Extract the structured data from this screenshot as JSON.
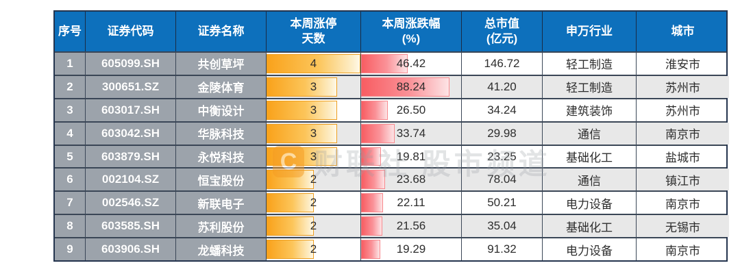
{
  "chart_data": {
    "type": "table",
    "title": "",
    "columns": [
      {
        "id": "index",
        "label": "序号"
      },
      {
        "id": "code",
        "label": "证券代码"
      },
      {
        "id": "name",
        "label": "证券名称"
      },
      {
        "id": "limit_days",
        "label": "本周涨停\n天数"
      },
      {
        "id": "change_pct",
        "label": "本周涨跌幅\n(%)"
      },
      {
        "id": "market_cap",
        "label": "总市值\n(亿元)"
      },
      {
        "id": "industry",
        "label": "申万行业"
      },
      {
        "id": "city",
        "label": "城市"
      }
    ],
    "rows": [
      {
        "index": "1",
        "code": "605099.SH",
        "name": "共创草坪",
        "limit_days": "4",
        "change_pct": "46.42",
        "market_cap": "146.72",
        "industry": "轻工制造",
        "city": "淮安市"
      },
      {
        "index": "2",
        "code": "300651.SZ",
        "name": "金陵体育",
        "limit_days": "3",
        "change_pct": "88.24",
        "market_cap": "41.20",
        "industry": "轻工制造",
        "city": "苏州市"
      },
      {
        "index": "3",
        "code": "603017.SH",
        "name": "中衡设计",
        "limit_days": "3",
        "change_pct": "26.50",
        "market_cap": "34.24",
        "industry": "建筑装饰",
        "city": "苏州市"
      },
      {
        "index": "4",
        "code": "603042.SH",
        "name": "华脉科技",
        "limit_days": "3",
        "change_pct": "33.74",
        "market_cap": "29.98",
        "industry": "通信",
        "city": "南京市"
      },
      {
        "index": "5",
        "code": "603879.SH",
        "name": "永悦科技",
        "limit_days": "3",
        "change_pct": "19.81",
        "market_cap": "23.25",
        "industry": "基础化工",
        "city": "盐城市"
      },
      {
        "index": "6",
        "code": "002104.SZ",
        "name": "恒宝股份",
        "limit_days": "2",
        "change_pct": "23.68",
        "market_cap": "78.04",
        "industry": "通信",
        "city": "镇江市"
      },
      {
        "index": "7",
        "code": "002546.SZ",
        "name": "新联电子",
        "limit_days": "2",
        "change_pct": "22.11",
        "market_cap": "50.21",
        "industry": "电力设备",
        "city": "南京市"
      },
      {
        "index": "8",
        "code": "603585.SH",
        "name": "苏利股份",
        "limit_days": "2",
        "change_pct": "21.56",
        "market_cap": "35.04",
        "industry": "基础化工",
        "city": "无锡市"
      },
      {
        "index": "9",
        "code": "603906.SH",
        "name": "龙蟠科技",
        "limit_days": "2",
        "change_pct": "19.29",
        "market_cap": "91.32",
        "industry": "电力设备",
        "city": "南京市"
      }
    ],
    "databars": {
      "limit_days": {
        "max": 4,
        "bar_color": "#f9a21b"
      },
      "change_pct": {
        "max": 100,
        "bar_color": "#f85d62"
      }
    },
    "layout": {
      "striped_rows": true,
      "grid": true
    }
  },
  "watermark": {
    "logo_letter": "C",
    "text": "财联社 股市频道"
  },
  "colors": {
    "header_bg": "#0d70bc",
    "header_text": "#ffffff",
    "id_col_bg": "#9ca3ab",
    "row_alt_bg": "#e8e8e8",
    "border_outer": "#24344e",
    "border_grid": "#3a4656",
    "border_head": "#1a2b44"
  }
}
